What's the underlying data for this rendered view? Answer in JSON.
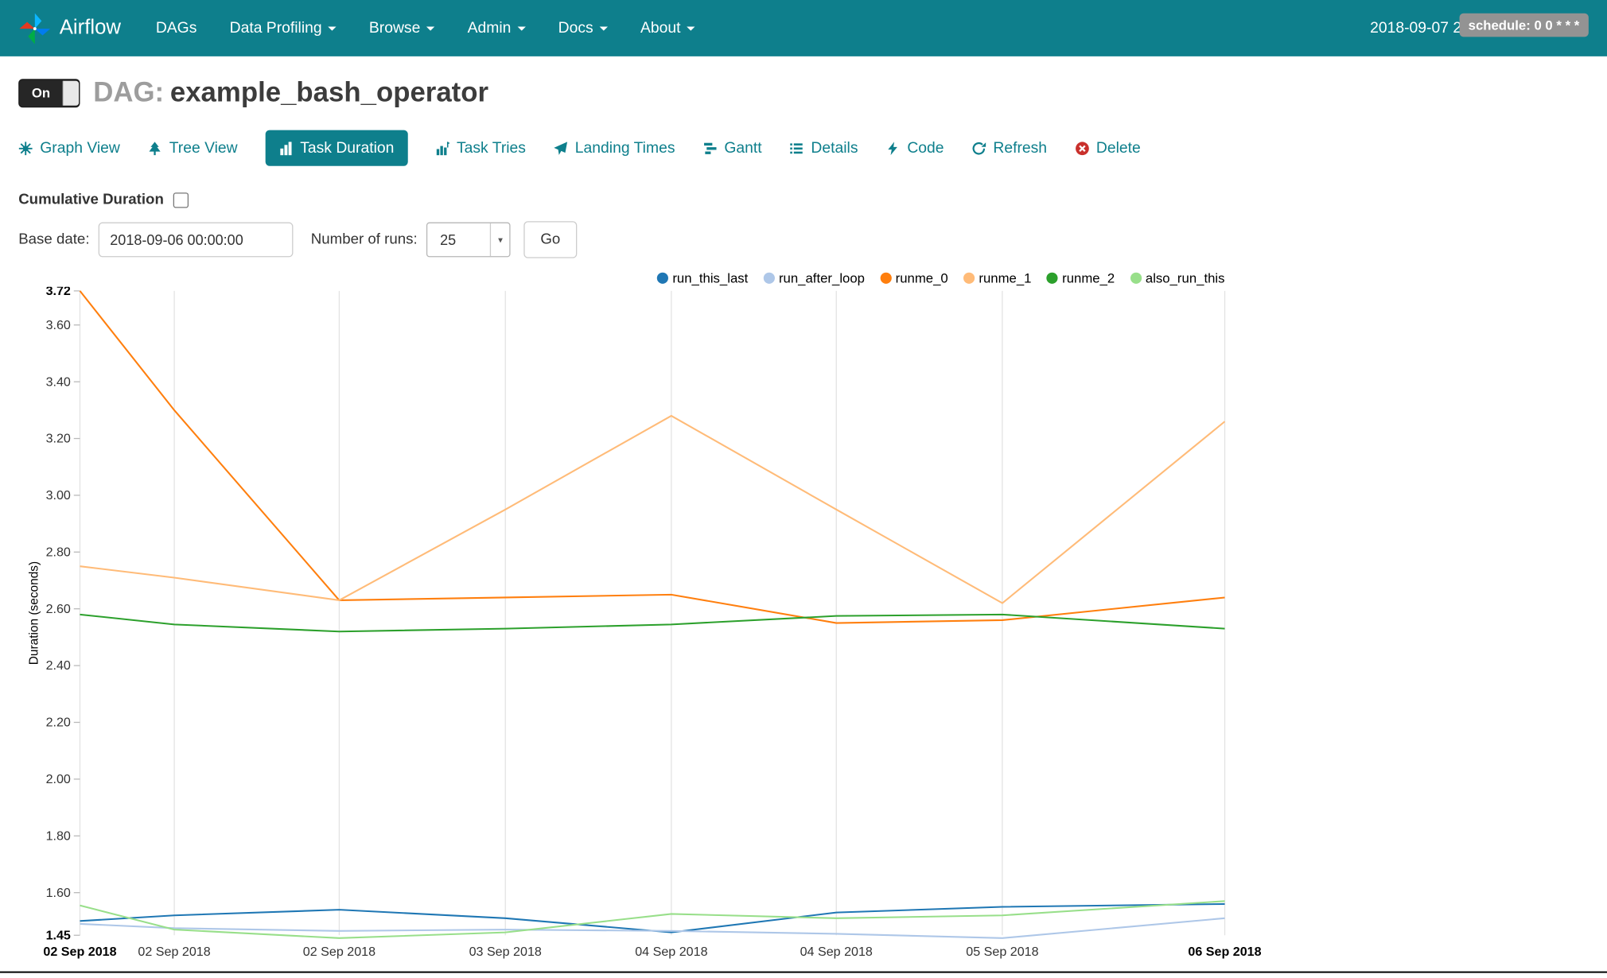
{
  "navbar": {
    "brand": "Airflow",
    "items": [
      {
        "label": "DAGs",
        "dropdown": false
      },
      {
        "label": "Data Profiling",
        "dropdown": true
      },
      {
        "label": "Browse",
        "dropdown": true
      },
      {
        "label": "Admin",
        "dropdown": true
      },
      {
        "label": "Docs",
        "dropdown": true
      },
      {
        "label": "About",
        "dropdown": true
      }
    ],
    "clock": "2018-09-07 22:28:24 UTC",
    "logout_icon": "logout-icon"
  },
  "header": {
    "toggle_label": "On",
    "dag_prefix": "DAG:",
    "dag_name": "example_bash_operator",
    "schedule_badge": "schedule: 0 0 * * *"
  },
  "tabs": {
    "items": [
      {
        "label": "Graph View",
        "icon": "graph-view-icon",
        "active": false
      },
      {
        "label": "Tree View",
        "icon": "tree-view-icon",
        "active": false
      },
      {
        "label": "Task Duration",
        "icon": "task-duration-icon",
        "active": true
      },
      {
        "label": "Task Tries",
        "icon": "task-tries-icon",
        "active": false
      },
      {
        "label": "Landing Times",
        "icon": "landing-times-icon",
        "active": false
      },
      {
        "label": "Gantt",
        "icon": "gantt-icon",
        "active": false
      },
      {
        "label": "Details",
        "icon": "details-icon",
        "active": false
      },
      {
        "label": "Code",
        "icon": "code-icon",
        "active": false
      },
      {
        "label": "Refresh",
        "icon": "refresh-icon",
        "active": false
      },
      {
        "label": "Delete",
        "icon": "delete-icon",
        "active": false
      }
    ]
  },
  "controls": {
    "cumulative_label": "Cumulative Duration",
    "cumulative_checked": false,
    "base_date_label": "Base date:",
    "base_date_value": "2018-09-06 00:00:00",
    "num_runs_label": "Number of runs:",
    "num_runs_value": "25",
    "go_label": "Go"
  },
  "chart_data": {
    "type": "line",
    "title": "",
    "xlabel": "",
    "ylabel": "Duration (seconds)",
    "ylim": [
      1.45,
      3.72
    ],
    "grid": "vertical-only",
    "legend_position": "top-right",
    "accent_color": "#0e7f8c",
    "y_ticks": [
      "3.72",
      "3.60",
      "3.40",
      "3.20",
      "3.00",
      "2.80",
      "2.60",
      "2.40",
      "2.20",
      "2.00",
      "1.80",
      "1.60",
      "1.45"
    ],
    "x_tick_labels": [
      "02 Sep 2018",
      "02 Sep 2018",
      "02 Sep 2018",
      "03 Sep 2018",
      "04 Sep 2018",
      "04 Sep 2018",
      "05 Sep 2018",
      "06 Sep 2018"
    ],
    "x_positions": [
      0,
      0.0824,
      0.2265,
      0.3716,
      0.5166,
      0.6607,
      0.8057,
      1.0
    ],
    "series": [
      {
        "name": "run_this_last",
        "color": "#1f77b4",
        "values": [
          1.5,
          1.52,
          1.54,
          1.51,
          1.46,
          1.53,
          1.55,
          1.56
        ]
      },
      {
        "name": "run_after_loop",
        "color": "#aec7e8",
        "values": [
          1.49,
          1.475,
          1.465,
          1.47,
          1.465,
          1.455,
          1.44,
          1.51
        ]
      },
      {
        "name": "runme_0",
        "color": "#ff7f0e",
        "values": [
          3.72,
          3.3,
          2.63,
          2.64,
          2.65,
          2.55,
          2.56,
          2.64
        ]
      },
      {
        "name": "runme_1",
        "color": "#ffbb78",
        "values": [
          2.75,
          2.71,
          2.63,
          2.95,
          3.28,
          2.95,
          2.62,
          3.26
        ]
      },
      {
        "name": "runme_2",
        "color": "#2ca02c",
        "values": [
          2.58,
          2.545,
          2.52,
          2.53,
          2.545,
          2.575,
          2.58,
          2.53
        ]
      },
      {
        "name": "also_run_this",
        "color": "#98df8a",
        "values": [
          1.555,
          1.47,
          1.44,
          1.46,
          1.525,
          1.51,
          1.52,
          1.57
        ]
      }
    ]
  }
}
